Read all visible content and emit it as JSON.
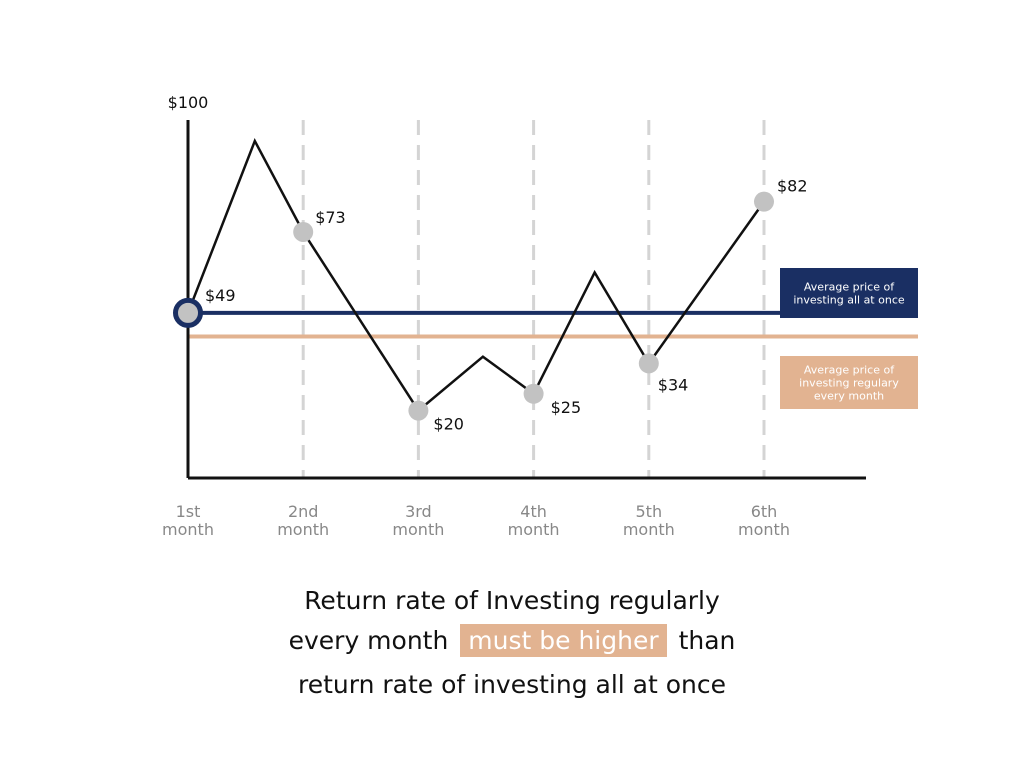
{
  "chart_data": {
    "type": "line",
    "y_top_label": "$100",
    "ylim": [
      0,
      100
    ],
    "x_labels": [
      {
        "line1": "1st",
        "line2": "month"
      },
      {
        "line1": "2nd",
        "line2": "month"
      },
      {
        "line1": "3rd",
        "line2": "month"
      },
      {
        "line1": "4th",
        "line2": "month"
      },
      {
        "line1": "5th",
        "line2": "month"
      },
      {
        "line1": "6th",
        "line2": "month"
      }
    ],
    "price_path": [
      {
        "x": 1,
        "y": 49
      },
      {
        "x": 1.58,
        "y": 100
      },
      {
        "x": 2,
        "y": 73
      },
      {
        "x": 3,
        "y": 20
      },
      {
        "x": 3.56,
        "y": 36
      },
      {
        "x": 4,
        "y": 25
      },
      {
        "x": 4.53,
        "y": 61
      },
      {
        "x": 5,
        "y": 34
      },
      {
        "x": 6,
        "y": 82
      }
    ],
    "monthly_points": [
      {
        "month": 1,
        "value": 49,
        "label": "$49"
      },
      {
        "month": 2,
        "value": 73,
        "label": "$73"
      },
      {
        "month": 3,
        "value": 20,
        "label": "$20"
      },
      {
        "month": 4,
        "value": 25,
        "label": "$25"
      },
      {
        "month": 5,
        "value": 34,
        "label": "$34"
      },
      {
        "month": 6,
        "value": 82,
        "label": "$82"
      }
    ],
    "reference_lines": [
      {
        "name": "all_at_once",
        "value": 49,
        "label_lines": [
          "Average price of",
          "investing all at once"
        ],
        "color": "#1a2f63"
      },
      {
        "name": "regularly",
        "value": 42,
        "label_lines": [
          "Average price of",
          "investing regulary",
          "every month"
        ],
        "color": "#e2b391"
      }
    ],
    "colors": {
      "line": "#111111",
      "point": "#c2c2c2",
      "axis": "#111111",
      "gridline": "#d4d4d4",
      "tick_label": "#888888"
    }
  },
  "caption": {
    "line1": "Return rate of Investing regularly",
    "line2_before": "every month",
    "line2_highlight": "must be higher",
    "line2_after": "than",
    "line3": "return rate of investing all at once"
  },
  "highlight_color": "#e2b391"
}
